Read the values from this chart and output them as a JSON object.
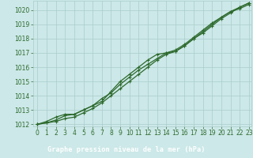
{
  "title": "Graphe pression niveau de la mer (hPa)",
  "x_hours": [
    0,
    1,
    2,
    3,
    4,
    5,
    6,
    7,
    8,
    9,
    10,
    11,
    12,
    13,
    14,
    15,
    16,
    17,
    18,
    19,
    20,
    21,
    22,
    23
  ],
  "line1": [
    1012.0,
    1012.1,
    1012.2,
    1012.4,
    1012.5,
    1012.8,
    1013.1,
    1013.5,
    1014.0,
    1014.5,
    1015.0,
    1015.5,
    1016.0,
    1016.5,
    1016.9,
    1017.1,
    1017.5,
    1018.0,
    1018.5,
    1019.0,
    1019.5,
    1019.9,
    1020.1,
    1020.4
  ],
  "line2": [
    1012.0,
    1012.1,
    1012.3,
    1012.6,
    1012.7,
    1013.0,
    1013.3,
    1013.8,
    1014.2,
    1014.8,
    1015.3,
    1015.8,
    1016.2,
    1016.6,
    1017.0,
    1017.1,
    1017.5,
    1018.0,
    1018.4,
    1018.9,
    1019.4,
    1019.8,
    1020.2,
    1020.5
  ],
  "line3": [
    1012.0,
    1012.2,
    1012.5,
    1012.7,
    1012.7,
    1013.0,
    1013.3,
    1013.6,
    1014.3,
    1015.0,
    1015.5,
    1016.0,
    1016.5,
    1016.9,
    1017.0,
    1017.2,
    1017.6,
    1018.1,
    1018.6,
    1019.1,
    1019.5,
    1019.9,
    1020.2,
    1020.5
  ],
  "ylim_min": 1012,
  "ylim_max": 1020.5,
  "xlim_min": 0,
  "xlim_max": 23,
  "yticks": [
    1012,
    1013,
    1014,
    1015,
    1016,
    1017,
    1018,
    1019,
    1020
  ],
  "xticks": [
    0,
    1,
    2,
    3,
    4,
    5,
    6,
    7,
    8,
    9,
    10,
    11,
    12,
    13,
    14,
    15,
    16,
    17,
    18,
    19,
    20,
    21,
    22,
    23
  ],
  "line_color": "#2d6a2d",
  "bg_color": "#cce8e8",
  "grid_color": "#aacccc",
  "title_bg": "#336633",
  "title_text_color": "#ffffff",
  "tick_color": "#2d6a2d",
  "tick_labelsize": 5.5,
  "title_fontsize": 6.2,
  "linewidth": 0.9,
  "markersize": 3.5
}
